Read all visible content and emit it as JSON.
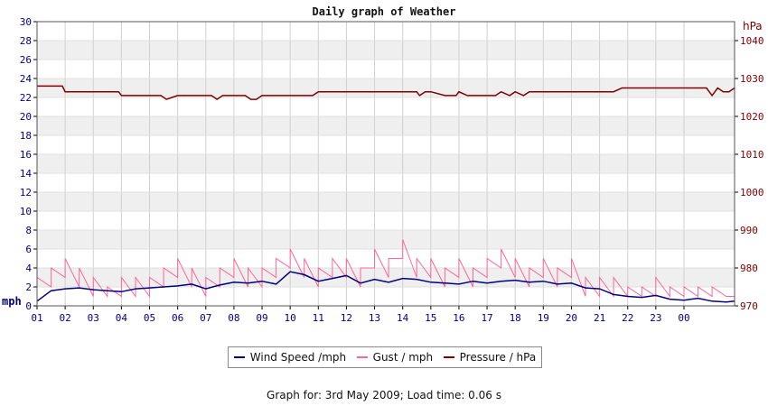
{
  "chart_data": {
    "type": "line",
    "title": "Daily graph of Weather",
    "left_axis": {
      "unit_label": "mph",
      "min": 0,
      "max": 30,
      "ticks": [
        0,
        2,
        4,
        6,
        8,
        10,
        12,
        14,
        16,
        18,
        20,
        22,
        24,
        26,
        28,
        30
      ]
    },
    "right_axis": {
      "unit_label": "hPa",
      "min": 970,
      "max": 1045,
      "ticks": [
        970,
        980,
        990,
        1000,
        1010,
        1020,
        1030,
        1040
      ]
    },
    "x_ticks": [
      "01",
      "02",
      "03",
      "04",
      "05",
      "06",
      "07",
      "08",
      "09",
      "10",
      "11",
      "12",
      "13",
      "14",
      "15",
      "16",
      "17",
      "18",
      "19",
      "20",
      "21",
      "22",
      "23",
      "00"
    ],
    "x_range_hours": [
      1,
      25.8
    ],
    "grid": "on",
    "legend_placement": "bottom-center",
    "series": [
      {
        "name": "Wind Speed /mph",
        "axis": "left",
        "color": "#000080",
        "x": [
          1,
          1.5,
          2,
          2.5,
          3,
          3.5,
          4,
          4.5,
          5,
          5.5,
          6,
          6.5,
          7,
          7.5,
          8,
          8.5,
          9,
          9.5,
          10,
          10.5,
          11,
          11.5,
          12,
          12.5,
          13,
          13.5,
          14,
          14.5,
          15,
          15.5,
          16,
          16.5,
          17,
          17.5,
          18,
          18.5,
          19,
          19.5,
          20,
          20.5,
          21,
          21.5,
          22,
          22.5,
          23,
          23.5,
          24,
          24.5,
          25,
          25.5,
          25.8
        ],
        "y": [
          0.5,
          1.6,
          1.8,
          1.9,
          1.7,
          1.6,
          1.5,
          1.8,
          1.9,
          2.0,
          2.1,
          2.3,
          1.8,
          2.2,
          2.5,
          2.4,
          2.6,
          2.3,
          3.6,
          3.3,
          2.6,
          2.9,
          3.2,
          2.4,
          2.8,
          2.5,
          2.9,
          2.8,
          2.5,
          2.4,
          2.3,
          2.6,
          2.4,
          2.6,
          2.7,
          2.5,
          2.6,
          2.3,
          2.4,
          1.9,
          1.8,
          1.2,
          1.0,
          0.9,
          1.1,
          0.7,
          0.6,
          0.8,
          0.5,
          0.4,
          0.5
        ]
      },
      {
        "name": "Gust / mph",
        "axis": "left",
        "color": "#ff6699",
        "x": [
          1,
          1.5,
          2,
          2.5,
          3,
          3.5,
          4,
          4.5,
          5,
          5.5,
          6,
          6.5,
          7,
          7.5,
          8,
          8.5,
          9,
          9.5,
          10,
          10.5,
          11,
          11.5,
          12,
          12.5,
          13,
          13.5,
          14,
          14.5,
          15,
          15.5,
          16,
          16.5,
          17,
          17.5,
          18,
          18.5,
          19,
          19.5,
          20,
          20.5,
          21,
          21.5,
          22,
          22.5,
          23,
          23.5,
          24,
          24.5,
          25,
          25.5,
          25.8
        ],
        "y": [
          3,
          4,
          5,
          4,
          3,
          2,
          3,
          3,
          3,
          4,
          5,
          4,
          3,
          4,
          5,
          4,
          4,
          5,
          6,
          5,
          4,
          5,
          5,
          4,
          6,
          5,
          7,
          5,
          5,
          4,
          5,
          4,
          5,
          6,
          5,
          4,
          5,
          4,
          5,
          3,
          3,
          3,
          2,
          2,
          3,
          2,
          2,
          2,
          2,
          1,
          1
        ]
      },
      {
        "name": "Pressure / hPa",
        "axis": "right",
        "color": "#800000",
        "x": [
          1,
          1.9,
          2,
          2.5,
          3,
          3.5,
          3.9,
          4,
          4.5,
          5,
          5.4,
          5.6,
          5.8,
          6,
          6.5,
          7,
          7.2,
          7.4,
          7.6,
          8,
          8.4,
          8.6,
          8.8,
          9,
          9.5,
          10,
          10.5,
          10.8,
          11,
          11.5,
          12,
          12.5,
          13,
          13.5,
          14,
          14.5,
          14.6,
          14.8,
          15,
          15.5,
          15.9,
          16,
          16.3,
          16.5,
          17,
          17.3,
          17.5,
          17.8,
          18,
          18.3,
          18.5,
          18.8,
          19,
          19.5,
          20,
          20.5,
          21,
          21.5,
          21.8,
          22,
          22.5,
          23,
          23.5,
          24,
          24.5,
          24.8,
          25,
          25.2,
          25.4,
          25.6,
          25.8
        ],
        "y": [
          1028,
          1028,
          1026.5,
          1026.5,
          1026.5,
          1026.5,
          1026.5,
          1025.5,
          1025.5,
          1025.5,
          1025.5,
          1024.5,
          1025,
          1025.5,
          1025.5,
          1025.5,
          1025.5,
          1024.5,
          1025.5,
          1025.5,
          1025.5,
          1024.5,
          1024.5,
          1025.5,
          1025.5,
          1025.5,
          1025.5,
          1025.5,
          1026.5,
          1026.5,
          1026.5,
          1026.5,
          1026.5,
          1026.5,
          1026.5,
          1026.5,
          1025.5,
          1026.5,
          1026.5,
          1025.5,
          1025.5,
          1026.5,
          1025.5,
          1025.5,
          1025.5,
          1025.5,
          1026.5,
          1025.5,
          1026.5,
          1025.5,
          1026.5,
          1026.5,
          1026.5,
          1026.5,
          1026.5,
          1026.5,
          1026.5,
          1026.5,
          1027.5,
          1027.5,
          1027.5,
          1027.5,
          1027.5,
          1027.5,
          1027.5,
          1027.5,
          1025.5,
          1027.5,
          1026.5,
          1026.5,
          1027.5
        ]
      }
    ]
  },
  "footer": "Graph for: 3rd May 2009; Load time: 0.06 s"
}
